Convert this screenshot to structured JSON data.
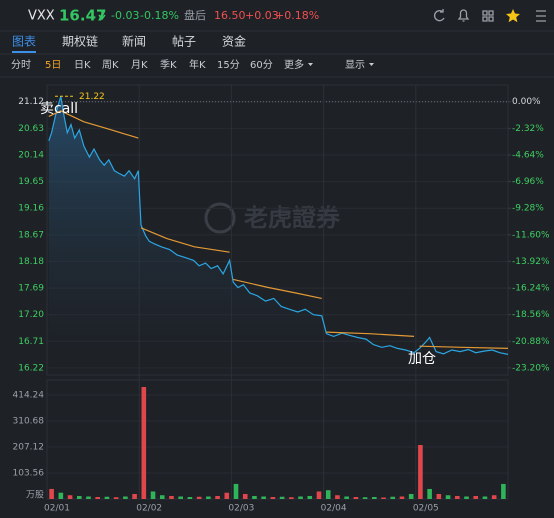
{
  "header": {
    "symbol": "VXX",
    "price": "16.47",
    "change": "-0.03",
    "change_pct": "-0.18%",
    "session": "盘后",
    "after_price": "16.50",
    "after_change": "+0.03",
    "after_pct": "+0.18%"
  },
  "tabs": {
    "items": [
      "图表",
      "期权链",
      "新闻",
      "帖子",
      "资金"
    ],
    "active": 0
  },
  "toolbar": {
    "items": [
      "分时",
      "5日",
      "日K",
      "周K",
      "月K",
      "季K",
      "年K",
      "15分",
      "60分",
      "更多",
      "显示"
    ],
    "active": 1
  },
  "watermark": "老虎證券",
  "chart_data": [
    {
      "type": "line",
      "xlim": [
        0,
        5
      ],
      "ylim": [
        16.09,
        21.28
      ],
      "yticks": [
        21.12,
        20.63,
        20.14,
        19.65,
        19.16,
        18.67,
        18.18,
        17.69,
        {
          "value": 17.2,
          "label": "17.20"
        },
        16.71,
        16.22
      ],
      "y2lim": [
        0.76,
        -23.82
      ],
      "y2ticks": [
        {
          "value": 0,
          "label": "0.00%"
        },
        {
          "value": -2.32,
          "label": "-2.32%"
        },
        {
          "value": -4.64,
          "label": "-4.64%"
        },
        {
          "value": -6.96,
          "label": "-6.96%"
        },
        {
          "value": -9.28,
          "label": "-9.28%"
        },
        {
          "value": -11.6,
          "label": "-11.60%"
        },
        {
          "value": -13.92,
          "label": "-13.92%"
        },
        {
          "value": -16.24,
          "label": "-16.24%"
        },
        {
          "value": -18.56,
          "label": "-18.56%"
        },
        {
          "value": -20.88,
          "label": "-20.88%"
        },
        {
          "value": -23.2,
          "label": "-23.20%"
        }
      ],
      "high_marker": 21.22,
      "annotations": [
        {
          "text": "卖call"
        },
        {
          "text": "加仓"
        }
      ],
      "series": [
        {
          "color": "#2ba6e3",
          "x": [
            0.02,
            0.05,
            0.09,
            0.12,
            0.15,
            0.18,
            0.22,
            0.26,
            0.3,
            0.35,
            0.4,
            0.46,
            0.51,
            0.57,
            0.62,
            0.67,
            0.73,
            0.78,
            0.84,
            0.89,
            0.95,
            0.99,
            1.02,
            1.07,
            1.11,
            1.17,
            1.24,
            1.33,
            1.41,
            1.5,
            1.59,
            1.65,
            1.72,
            1.78,
            1.85,
            1.91,
            1.98,
            2.02,
            2.07,
            2.13,
            2.2,
            2.28,
            2.37,
            2.46,
            2.54,
            2.63,
            2.72,
            2.8,
            2.89,
            2.98,
            3.03,
            3.11,
            3.2,
            3.28,
            3.37,
            3.46,
            3.54,
            3.63,
            3.72,
            3.8,
            3.89,
            3.98,
            4.04,
            4.11,
            4.15,
            4.22,
            4.3,
            4.39,
            4.48,
            4.57,
            4.65,
            4.74,
            4.83,
            4.91,
            5.0
          ],
          "values": [
            20.4,
            20.55,
            20.85,
            21.05,
            21.22,
            20.9,
            20.55,
            20.7,
            20.45,
            20.6,
            20.3,
            20.1,
            20.25,
            20.05,
            19.95,
            20.05,
            19.85,
            19.8,
            19.75,
            19.85,
            19.7,
            19.85,
            18.85,
            18.65,
            18.55,
            18.5,
            18.45,
            18.4,
            18.3,
            18.25,
            18.2,
            18.1,
            18.15,
            18.05,
            18.1,
            17.95,
            18.2,
            17.8,
            17.7,
            17.75,
            17.6,
            17.55,
            17.45,
            17.5,
            17.35,
            17.3,
            17.25,
            17.3,
            17.2,
            17.18,
            16.85,
            16.8,
            16.86,
            16.82,
            16.78,
            16.75,
            16.65,
            16.6,
            16.63,
            16.58,
            16.55,
            16.5,
            16.58,
            16.7,
            16.78,
            16.52,
            16.48,
            16.55,
            16.52,
            16.56,
            16.5,
            16.53,
            16.55,
            16.5,
            16.47
          ]
        },
        {
          "color": "#e39a36",
          "x": [
            0.02,
            0.15,
            0.4,
            0.7,
            0.99,
            1.0,
            1.02,
            1.3,
            1.6,
            1.98,
            2.0,
            2.02,
            2.4,
            2.7,
            2.98,
            3.0,
            3.03,
            3.5,
            3.98,
            4.0,
            4.04,
            4.5,
            5.0
          ],
          "values": [
            20.85,
            20.95,
            20.75,
            20.6,
            20.45,
            null,
            18.8,
            18.6,
            18.45,
            18.35,
            null,
            17.85,
            17.7,
            17.6,
            17.5,
            null,
            16.88,
            16.85,
            16.8,
            null,
            16.62,
            16.6,
            16.58
          ]
        }
      ]
    },
    {
      "type": "bar",
      "xlim": [
        0,
        5
      ],
      "ylim": [
        0,
        450
      ],
      "yticks": [
        103.56,
        207.12,
        310.68,
        414.24
      ],
      "unit_label": "万股",
      "xticks": [
        {
          "value": 0,
          "label": "02/01"
        },
        {
          "value": 1,
          "label": "02/02"
        },
        {
          "value": 2,
          "label": "02/03"
        },
        {
          "value": 3,
          "label": "02/04"
        },
        {
          "value": 4,
          "label": "02/05"
        }
      ],
      "x": [
        0.05,
        0.15,
        0.25,
        0.35,
        0.45,
        0.55,
        0.65,
        0.75,
        0.85,
        0.95,
        1.05,
        1.15,
        1.25,
        1.35,
        1.45,
        1.55,
        1.65,
        1.75,
        1.85,
        1.95,
        2.05,
        2.15,
        2.25,
        2.35,
        2.45,
        2.55,
        2.65,
        2.75,
        2.85,
        2.95,
        3.05,
        3.15,
        3.25,
        3.35,
        3.45,
        3.55,
        3.65,
        3.75,
        3.85,
        3.95,
        4.05,
        4.15,
        4.25,
        4.35,
        4.45,
        4.55,
        4.65,
        4.75,
        4.85,
        4.95
      ],
      "values": [
        40,
        25,
        15,
        12,
        10,
        8,
        9,
        7,
        10,
        20,
        446,
        30,
        15,
        12,
        10,
        8,
        9,
        10,
        12,
        25,
        60,
        20,
        12,
        10,
        8,
        9,
        7,
        10,
        12,
        30,
        35,
        15,
        10,
        8,
        7,
        8,
        6,
        9,
        10,
        20,
        215,
        40,
        20,
        15,
        12,
        10,
        12,
        10,
        15,
        60
      ],
      "colors": [
        "#e0474c",
        "#2fb45a",
        "#e0474c",
        "#2fb45a",
        "#2fb45a",
        "#e0474c",
        "#2fb45a",
        "#e0474c",
        "#2fb45a",
        "#e0474c",
        "#e0474c",
        "#2fb45a",
        "#2fb45a",
        "#e0474c",
        "#2fb45a",
        "#2fb45a",
        "#e0474c",
        "#2fb45a",
        "#e0474c",
        "#e0474c",
        "#2fb45a",
        "#e0474c",
        "#2fb45a",
        "#2fb45a",
        "#e0474c",
        "#2fb45a",
        "#e0474c",
        "#2fb45a",
        "#2fb45a",
        "#e0474c",
        "#2fb45a",
        "#e0474c",
        "#2fb45a",
        "#e0474c",
        "#2fb45a",
        "#2fb45a",
        "#e0474c",
        "#2fb45a",
        "#e0474c",
        "#2fb45a",
        "#e0474c",
        "#2fb45a",
        "#e0474c",
        "#2fb45a",
        "#e0474c",
        "#2fb45a",
        "#e0474c",
        "#2fb45a",
        "#e0474c",
        "#2fb45a"
      ]
    }
  ]
}
